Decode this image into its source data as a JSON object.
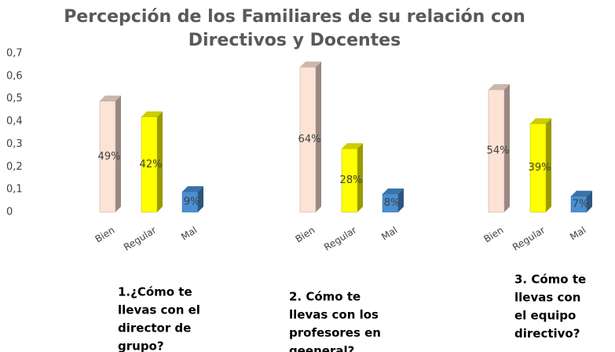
{
  "chart_data": {
    "type": "bar3d",
    "title": [
      "Percepción de los Familiares de su relación con",
      "Directivos y Docentes"
    ],
    "categories": [
      [
        "1.¿Cómo te",
        "llevas con el",
        "director de",
        "grupo?"
      ],
      [
        "2. Cómo te",
        "llevas con los",
        "profesores en",
        "geeneral?"
      ],
      [
        "3. Cómo te",
        "llevas con",
        "el equipo",
        "directivo?"
      ]
    ],
    "series": [
      {
        "name": "Bien",
        "color": "#fde3d6",
        "values": [
          0.49,
          0.64,
          0.54
        ],
        "value_labels": [
          "49%",
          "64%",
          "54%"
        ]
      },
      {
        "name": "Regular",
        "color": "#ffff00",
        "values": [
          0.42,
          0.28,
          0.39
        ],
        "value_labels": [
          "42%",
          "28%",
          "39%"
        ]
      },
      {
        "name": "Mal",
        "color": "#4a8fd4",
        "values": [
          0.09,
          0.08,
          0.07
        ],
        "value_labels": [
          "9%",
          "8%",
          "7%"
        ]
      }
    ],
    "ylim": [
      0,
      0.7
    ],
    "yticks": [
      0,
      {
        "value": 0.1,
        "label": "0,1"
      },
      {
        "value": 0.2,
        "label": "0,2"
      },
      {
        "value": 0.3,
        "label": "0,3"
      },
      {
        "value": 0.4,
        "label": "0,4"
      },
      {
        "value": 0.5,
        "label": "0,5"
      },
      {
        "value": 0.6,
        "label": "0,6"
      },
      {
        "value": 0.7,
        "label": "0,7"
      }
    ]
  }
}
